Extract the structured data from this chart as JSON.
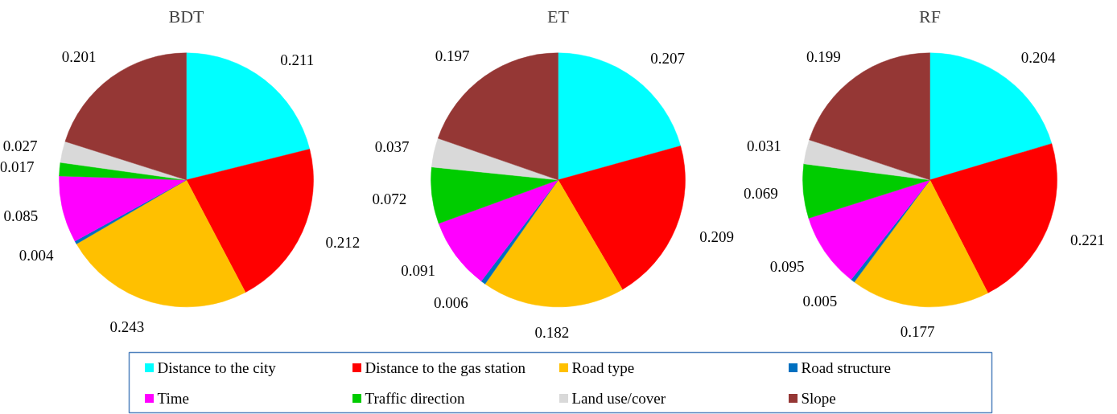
{
  "chart_data": [
    {
      "type": "pie",
      "title": "BDT",
      "categories": [
        "Distance to the city",
        "Distance to the gas station",
        "Road type",
        "Road structure",
        "Time",
        "Traffic direction",
        "Land use/cover",
        "Slope"
      ],
      "values": [
        0.211,
        0.212,
        0.243,
        0.004,
        0.085,
        0.017,
        0.027,
        0.201
      ],
      "colors": [
        "#00ffff",
        "#ff0000",
        "#ffc000",
        "#0070c0",
        "#ff00ff",
        "#00cc00",
        "#d9d9d9",
        "#953735"
      ],
      "data_labels": true,
      "legend": "bottom"
    },
    {
      "type": "pie",
      "title": "ET",
      "values": [
        0.207,
        0.209,
        0.182,
        0.006,
        0.091,
        0.072,
        0.037,
        0.197
      ],
      "colors": [
        "#00ffff",
        "#ff0000",
        "#ffc000",
        "#0070c0",
        "#ff00ff",
        "#00cc00",
        "#d9d9d9",
        "#953735"
      ],
      "data_labels": true
    },
    {
      "type": "pie",
      "title": "RF",
      "values": [
        0.204,
        0.221,
        0.177,
        0.005,
        0.095,
        0.069,
        0.031,
        0.199
      ],
      "colors": [
        "#00ffff",
        "#ff0000",
        "#ffc000",
        "#0070c0",
        "#ff00ff",
        "#00cc00",
        "#d9d9d9",
        "#953735"
      ],
      "data_labels": true
    }
  ]
}
